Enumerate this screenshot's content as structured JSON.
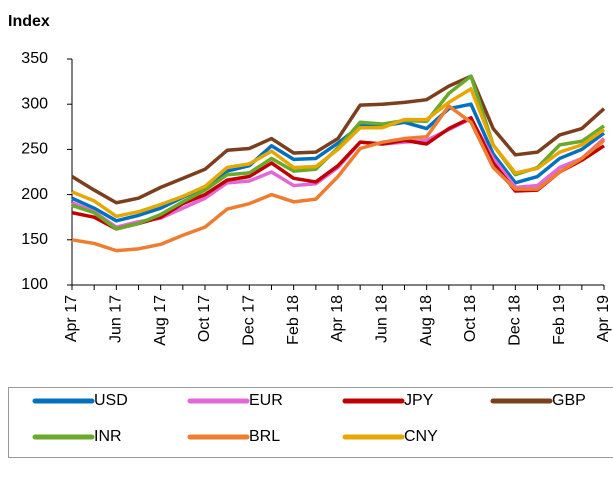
{
  "chart_data": {
    "type": "line",
    "y_label": "Index",
    "categories": [
      "Apr 17",
      null,
      "Jun 17",
      null,
      "Aug 17",
      null,
      "Oct 17",
      null,
      "Dec 17",
      null,
      "Feb 18",
      null,
      "Apr 18",
      null,
      "Jun 18",
      null,
      "Aug 18",
      null,
      "Oct 18",
      null,
      "Dec 18",
      null,
      "Feb 19",
      null,
      "Apr 19"
    ],
    "ylim": [
      100,
      350
    ],
    "yticks": [
      100,
      150,
      200,
      250,
      300,
      350
    ],
    "grid": false,
    "legend": "bottom",
    "series": [
      {
        "name": "USD",
        "color": "#0070c0",
        "values": [
          196,
          185,
          171,
          177,
          185,
          197,
          208,
          226,
          232,
          254,
          239,
          240,
          257,
          276,
          276,
          280,
          273,
          295,
          300,
          245,
          213,
          220,
          240,
          250,
          268
        ]
      },
      {
        "name": "EUR",
        "color": "#e466d8",
        "values": [
          191,
          181,
          164,
          170,
          174,
          185,
          196,
          213,
          215,
          225,
          210,
          212,
          230,
          258,
          256,
          258,
          260,
          272,
          284,
          240,
          208,
          210,
          230,
          240,
          262
        ]
      },
      {
        "name": "JPY",
        "color": "#c00000",
        "values": [
          180,
          175,
          162,
          168,
          175,
          190,
          200,
          216,
          220,
          235,
          218,
          214,
          232,
          258,
          256,
          260,
          256,
          273,
          285,
          235,
          204,
          205,
          225,
          238,
          254
        ]
      },
      {
        "name": "GBP",
        "color": "#7b3f1e",
        "values": [
          220,
          205,
          191,
          196,
          208,
          218,
          228,
          249,
          251,
          262,
          246,
          247,
          262,
          299,
          300,
          302,
          305,
          320,
          331,
          273,
          244,
          247,
          266,
          273,
          295
        ]
      },
      {
        "name": "INR",
        "color": "#6aaa2a",
        "values": [
          188,
          180,
          162,
          168,
          178,
          192,
          205,
          222,
          224,
          240,
          226,
          228,
          252,
          280,
          278,
          282,
          281,
          312,
          331,
          255,
          222,
          230,
          255,
          259,
          276
        ]
      },
      {
        "name": "BRL",
        "color": "#ed7d31",
        "values": [
          150,
          146,
          138,
          140,
          145,
          155,
          164,
          184,
          190,
          200,
          192,
          195,
          220,
          251,
          258,
          262,
          264,
          298,
          280,
          230,
          206,
          206,
          225,
          240,
          260
        ]
      },
      {
        "name": "CNY",
        "color": "#e6a800",
        "values": [
          203,
          193,
          176,
          181,
          189,
          198,
          209,
          230,
          234,
          248,
          230,
          231,
          250,
          274,
          274,
          283,
          283,
          302,
          317,
          255,
          224,
          229,
          247,
          255,
          272
        ]
      }
    ]
  }
}
